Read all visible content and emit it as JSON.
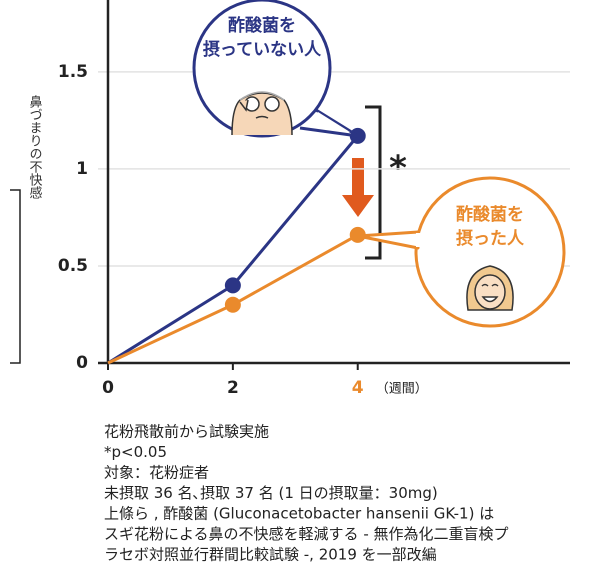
{
  "chart_data": {
    "type": "line",
    "x": [
      0,
      2,
      4
    ],
    "series": [
      {
        "name": "酢酸菌を摂っていない人",
        "color": "#2b3585",
        "values": [
          0,
          0.4,
          1.17
        ]
      },
      {
        "name": "酢酸菌を摂った人",
        "color": "#ea8a2c",
        "values": [
          0,
          0.3,
          0.66
        ]
      }
    ],
    "xlim": [
      0,
      7.4
    ],
    "ylim": [
      0,
      1.87
    ],
    "xticks": [
      0,
      2,
      4
    ],
    "xtick_colors": [
      "#222222",
      "#222222",
      "#ea8a2c"
    ],
    "yticks": [
      0,
      0.5,
      1,
      1.5
    ],
    "grid": true,
    "hide_first_marker": true,
    "y_label": "鼻づまりの不快感",
    "x_unit": "（週間）",
    "significance": "*",
    "bubbles": [
      {
        "lines": [
          "酢酸菌を",
          "摂っていない人"
        ],
        "color": "#2b3585"
      },
      {
        "lines": [
          "酢酸菌を",
          "摂った人"
        ],
        "color": "#ea8a2c"
      }
    ],
    "notes": [
      "花粉飛散前から試験実施",
      "*p<0.05",
      "対象：花粉症者",
      "未摂取 36 名､摂取 37 名 (1 日の摂取量：30mg)",
      "上條ら , 酢酸菌 (Gluconacetobacter hansenii GK-1) は",
      "スギ花粉による鼻の不快感を軽減する - 無作為化二重盲検プ",
      "ラセボ対照並行群間比較試験 -, 2019 を一部改編"
    ]
  }
}
